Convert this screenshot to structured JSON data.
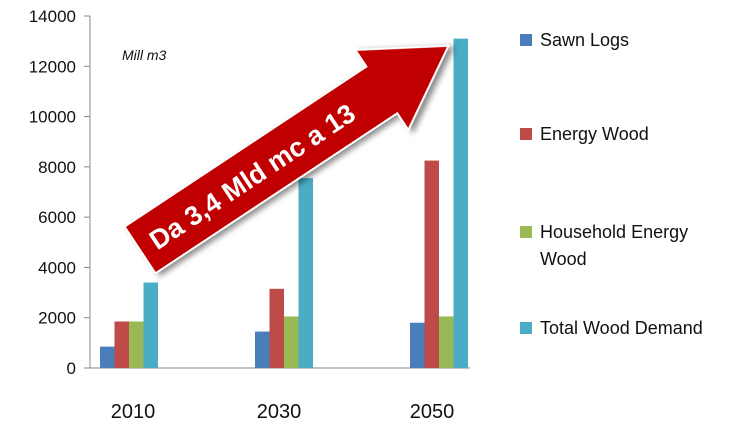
{
  "chart_data": {
    "type": "bar",
    "categories": [
      "2010",
      "2030",
      "2050"
    ],
    "series": [
      {
        "name": "Sawn Logs",
        "values": [
          850,
          1450,
          1800
        ],
        "color": "#4a7ebb"
      },
      {
        "name": "Energy Wood",
        "values": [
          1850,
          3150,
          8250
        ],
        "color": "#be4b48"
      },
      {
        "name": "Household Energy Wood",
        "values": [
          1850,
          2050,
          2050
        ],
        "color": "#98b954"
      },
      {
        "name": "Total Wood Demand",
        "values": [
          3400,
          7550,
          13100
        ],
        "color": "#4bacc6"
      }
    ],
    "y_ticks": [
      "0",
      "2000",
      "4000",
      "6000",
      "8000",
      "10000",
      "12000",
      "14000"
    ],
    "ylim": [
      0,
      14000
    ],
    "unit_label": "Mill m3",
    "legend_position": "right",
    "grid": false,
    "annotation": {
      "text": "Da 3,4 Mld mc a 13",
      "color": "#c00000",
      "shape": "arrow-up-right"
    }
  }
}
